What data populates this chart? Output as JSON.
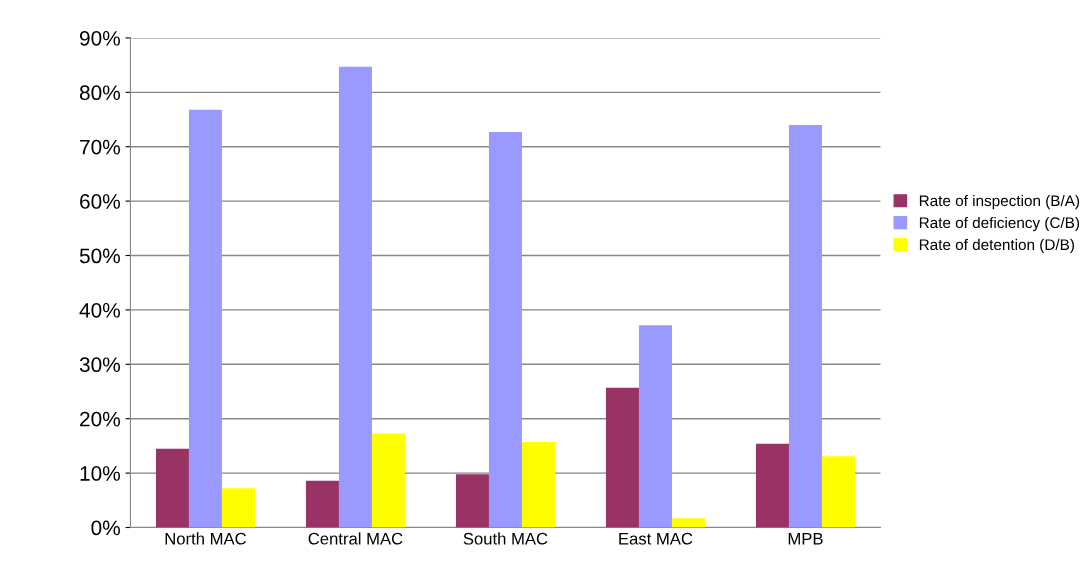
{
  "chart_data": {
    "type": "bar",
    "categories": [
      "North MAC",
      "Central MAC",
      "South MAC",
      "East MAC",
      "MPB"
    ],
    "series": [
      {
        "name": "Rate of inspection (B/A)",
        "color": "#993366",
        "values": [
          14.5,
          8.6,
          9.8,
          25.7,
          15.4
        ]
      },
      {
        "name": "Rate of deficiency (C/B)",
        "color": "#9999ff",
        "values": [
          76.8,
          84.7,
          72.7,
          37.2,
          74.0
        ]
      },
      {
        "name": "Rate of detention (D/B)",
        "color": "#ffff00",
        "values": [
          7.2,
          17.3,
          15.7,
          1.7,
          13.1
        ]
      }
    ],
    "ylim": [
      0,
      90
    ],
    "yticks": [
      {
        "value": 0,
        "label": "0%"
      },
      {
        "value": 10,
        "label": "10%"
      },
      {
        "value": 20,
        "label": "20%"
      },
      {
        "value": 30,
        "label": "30%"
      },
      {
        "value": 40,
        "label": "40%"
      },
      {
        "value": 50,
        "label": "50%"
      },
      {
        "value": 60,
        "label": "60%"
      },
      {
        "value": 70,
        "label": "70%"
      },
      {
        "value": 80,
        "label": "80%"
      },
      {
        "value": 90,
        "label": "90%"
      }
    ],
    "grid": "y",
    "legend": "right"
  }
}
